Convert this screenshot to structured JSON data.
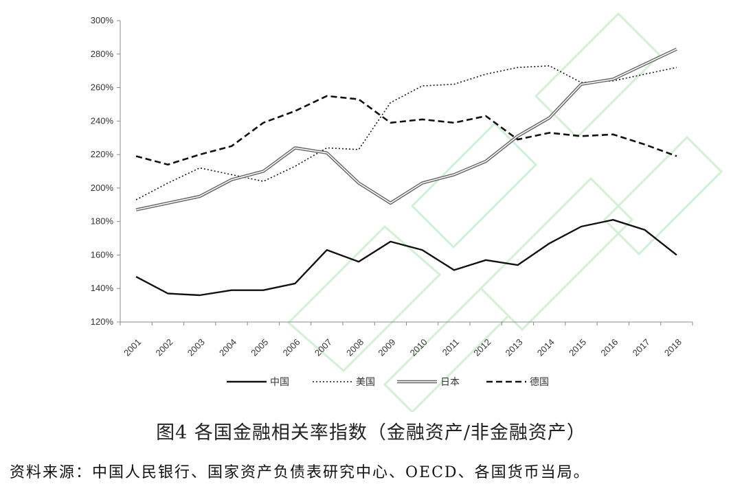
{
  "caption": "图4  各国金融相关率指数（金融资产/非金融资产）",
  "source": "资料来源：中国人民银行、国家资产负债表研究中心、OECD、各国货币当局。",
  "chart_data": {
    "type": "line",
    "x": [
      "2001",
      "2002",
      "2003",
      "2004",
      "2005",
      "2006",
      "2007",
      "2008",
      "2009",
      "2010",
      "2011",
      "2012",
      "2013",
      "2014",
      "2015",
      "2016",
      "2017",
      "2018"
    ],
    "y_ticks": [
      "120%",
      "140%",
      "160%",
      "180%",
      "200%",
      "220%",
      "240%",
      "260%",
      "280%",
      "300%"
    ],
    "ylim": [
      120,
      300
    ],
    "y_unit": "%",
    "legend_position": "bottom",
    "series": [
      {
        "name": "中国",
        "style": "solid",
        "values": [
          147,
          137,
          136,
          139,
          139,
          143,
          163,
          156,
          168,
          163,
          151,
          157,
          154,
          167,
          177,
          181,
          175,
          160
        ]
      },
      {
        "name": "美国",
        "style": "dotted",
        "values": [
          193,
          203,
          212,
          208,
          204,
          213,
          224,
          223,
          251,
          261,
          262,
          268,
          272,
          273,
          263,
          264,
          268,
          272
        ]
      },
      {
        "name": "日本",
        "style": "double",
        "values": [
          187,
          191,
          195,
          205,
          210,
          224,
          221,
          203,
          191,
          203,
          208,
          216,
          231,
          242,
          262,
          265,
          274,
          283
        ]
      },
      {
        "name": "德国",
        "style": "dashed",
        "values": [
          219,
          214,
          220,
          225,
          239,
          246,
          255,
          253,
          239,
          241,
          239,
          243,
          229,
          233,
          231,
          232,
          226,
          219
        ]
      }
    ]
  }
}
